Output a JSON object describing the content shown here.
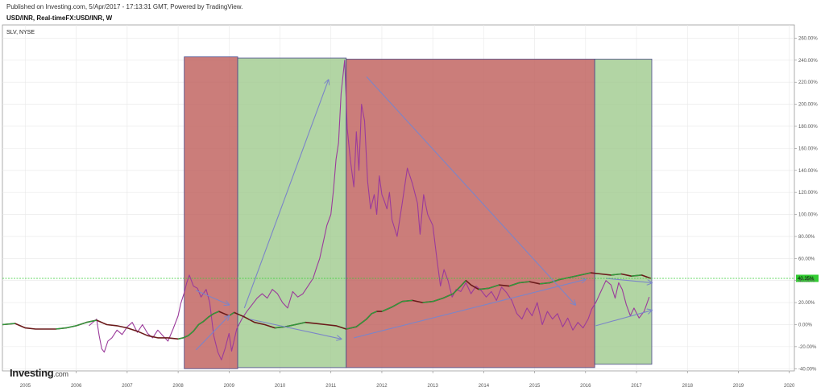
{
  "header": {
    "published": "Published on Investing.com, 5/Apr/2017 - 17:13:31 GMT, Powered by TradingView.",
    "symbol": "USD/INR, Real-timeFX:USD/INR, W"
  },
  "logo": {
    "text": "Investing",
    "suffix": ".com"
  },
  "colors": {
    "red_zone": "#c0605d",
    "green_zone": "#9cc98a",
    "purple": "#9b3b9b",
    "arrow": "#7b85c8",
    "up_candle": "#2e9e3e",
    "down_candle": "#6a1a1a",
    "ref_line": "#33cc33",
    "badge": "#33cc33"
  },
  "chart_data": {
    "type": "line",
    "title": "",
    "legend": [
      "SLV, NYSE"
    ],
    "xlabel": "",
    "ylabel": "",
    "x_ticks": [
      "2005",
      "2006",
      "2007",
      "2008",
      "2009",
      "2010",
      "2011",
      "2012",
      "2013",
      "2014",
      "2015",
      "2016",
      "2017",
      "2018",
      "2019",
      "2020"
    ],
    "y_ticks": [
      "260.00%",
      "240.00%",
      "220.00%",
      "200.00%",
      "180.00%",
      "160.00%",
      "140.00%",
      "120.00%",
      "100.00%",
      "80.00%",
      "60.00%",
      "40.00%",
      "20.00%",
      "0.00%",
      "-20.00%",
      "-40.00%"
    ],
    "xlim": [
      2004.55,
      2020.1
    ],
    "ylim": [
      -42,
      272
    ],
    "grid": true,
    "legend_position": "top-left",
    "reference_line": {
      "value": 42,
      "label": "40.35%"
    },
    "zones": [
      {
        "kind": "red",
        "x0": 2008.12,
        "x1": 2009.17,
        "y0": -40,
        "y1": 243
      },
      {
        "kind": "green",
        "x0": 2009.17,
        "x1": 2011.3,
        "y0": -39,
        "y1": 242
      },
      {
        "kind": "red",
        "x0": 2011.3,
        "x1": 2016.18,
        "y0": -39,
        "y1": 241
      },
      {
        "kind": "green",
        "x0": 2016.18,
        "x1": 2017.3,
        "y0": -36,
        "y1": 241
      }
    ],
    "arrows": [
      {
        "from": [
          2008.35,
          31
        ],
        "to": [
          2009.0,
          18
        ]
      },
      {
        "from": [
          2008.35,
          -23
        ],
        "to": [
          2009.0,
          8
        ]
      },
      {
        "from": [
          2009.3,
          15
        ],
        "to": [
          2010.95,
          222
        ]
      },
      {
        "from": [
          2009.4,
          5
        ],
        "to": [
          2011.2,
          -13
        ]
      },
      {
        "from": [
          2011.7,
          225
        ],
        "to": [
          2015.8,
          18
        ]
      },
      {
        "from": [
          2011.45,
          -12
        ],
        "to": [
          2016.0,
          41
        ]
      },
      {
        "from": [
          2016.4,
          42
        ],
        "to": [
          2017.3,
          38
        ]
      },
      {
        "from": [
          2016.2,
          -1
        ],
        "to": [
          2017.3,
          13
        ]
      }
    ],
    "series": [
      {
        "name": "SLV, NYSE",
        "x": [
          2006.25,
          2006.4,
          2006.45,
          2006.5,
          2006.55,
          2006.62,
          2006.7,
          2006.8,
          2006.9,
          2007.0,
          2007.1,
          2007.2,
          2007.3,
          2007.4,
          2007.5,
          2007.6,
          2007.7,
          2007.8,
          2007.9,
          2008.0,
          2008.05,
          2008.12,
          2008.17,
          2008.22,
          2008.3,
          2008.38,
          2008.45,
          2008.55,
          2008.62,
          2008.7,
          2008.78,
          2008.85,
          2008.92,
          2009.0,
          2009.05,
          2009.15,
          2009.25,
          2009.35,
          2009.45,
          2009.55,
          2009.65,
          2009.75,
          2009.85,
          2009.95,
          2010.05,
          2010.15,
          2010.25,
          2010.35,
          2010.45,
          2010.55,
          2010.65,
          2010.72,
          2010.78,
          2010.85,
          2010.92,
          2011.0,
          2011.05,
          2011.1,
          2011.15,
          2011.2,
          2011.27,
          2011.32,
          2011.38,
          2011.45,
          2011.5,
          2011.55,
          2011.6,
          2011.66,
          2011.72,
          2011.78,
          2011.85,
          2011.9,
          2011.95,
          2012.0,
          2012.05,
          2012.1,
          2012.15,
          2012.2,
          2012.3,
          2012.4,
          2012.5,
          2012.6,
          2012.7,
          2012.75,
          2012.82,
          2012.9,
          2013.0,
          2013.08,
          2013.15,
          2013.22,
          2013.3,
          2013.38,
          2013.46,
          2013.55,
          2013.65,
          2013.75,
          2013.85,
          2013.95,
          2014.05,
          2014.15,
          2014.25,
          2014.35,
          2014.45,
          2014.55,
          2014.65,
          2014.75,
          2014.85,
          2014.95,
          2015.05,
          2015.15,
          2015.25,
          2015.35,
          2015.45,
          2015.55,
          2015.65,
          2015.75,
          2015.85,
          2015.95,
          2016.05,
          2016.12,
          2016.2,
          2016.3,
          2016.4,
          2016.5,
          2016.58,
          2016.65,
          2016.72,
          2016.8,
          2016.88,
          2016.95,
          2017.05,
          2017.15,
          2017.25
        ],
        "y": [
          -1,
          5,
          -10,
          -22,
          -25,
          -15,
          -12,
          -5,
          -9,
          -2,
          2,
          -7,
          0,
          -8,
          -12,
          -5,
          -10,
          -15,
          -4,
          8,
          19,
          29,
          38,
          45,
          35,
          33,
          25,
          32,
          20,
          -10,
          -25,
          -32,
          -22,
          -8,
          -24,
          -4,
          5,
          12,
          18,
          24,
          28,
          24,
          32,
          28,
          20,
          15,
          30,
          25,
          28,
          35,
          42,
          52,
          60,
          75,
          90,
          100,
          122,
          150,
          165,
          210,
          240,
          178,
          150,
          125,
          175,
          140,
          200,
          185,
          130,
          105,
          118,
          100,
          135,
          118,
          112,
          105,
          120,
          95,
          80,
          110,
          142,
          128,
          110,
          82,
          118,
          100,
          90,
          60,
          35,
          50,
          40,
          25,
          32,
          30,
          38,
          28,
          35,
          31,
          25,
          30,
          22,
          34,
          29,
          22,
          10,
          5,
          15,
          8,
          20,
          0,
          12,
          5,
          10,
          -2,
          6,
          -5,
          2,
          -3,
          5,
          14,
          20,
          30,
          40,
          36,
          24,
          38,
          32,
          18,
          8,
          15,
          6,
          12,
          25
        ]
      },
      {
        "name": "USD/INR",
        "x": [
          2004.55,
          2004.8,
          2005.0,
          2005.2,
          2005.4,
          2005.6,
          2005.8,
          2006.0,
          2006.2,
          2006.4,
          2006.6,
          2006.8,
          2007.0,
          2007.2,
          2007.4,
          2007.6,
          2007.8,
          2008.0,
          2008.1,
          2008.2,
          2008.3,
          2008.4,
          2008.5,
          2008.6,
          2008.7,
          2008.8,
          2008.9,
          2009.0,
          2009.1,
          2009.2,
          2009.3,
          2009.5,
          2009.7,
          2009.9,
          2010.1,
          2010.3,
          2010.5,
          2010.7,
          2010.9,
          2011.1,
          2011.3,
          2011.5,
          2011.7,
          2011.8,
          2011.9,
          2012.0,
          2012.2,
          2012.4,
          2012.6,
          2012.8,
          2013.0,
          2013.2,
          2013.4,
          2013.55,
          2013.65,
          2013.75,
          2013.9,
          2014.1,
          2014.3,
          2014.5,
          2014.7,
          2014.9,
          2015.1,
          2015.3,
          2015.5,
          2015.7,
          2015.9,
          2016.1,
          2016.3,
          2016.5,
          2016.7,
          2016.9,
          2017.1,
          2017.28
        ],
        "y": [
          0,
          1,
          -3,
          -4,
          -4,
          -4,
          -3,
          -1,
          2,
          4,
          0,
          -1,
          -3,
          -6,
          -10,
          -12,
          -12,
          -13,
          -12,
          -10,
          -6,
          0,
          3,
          7,
          10,
          12,
          10,
          8,
          11,
          9,
          7,
          2,
          0,
          -3,
          -2,
          0,
          2,
          1,
          0,
          -1,
          -4,
          -2,
          5,
          10,
          12,
          12,
          16,
          21,
          22,
          20,
          21,
          24,
          28,
          35,
          40,
          36,
          32,
          33,
          36,
          35,
          38,
          39,
          37,
          38,
          41,
          43,
          45,
          47,
          46,
          45,
          46,
          44,
          45,
          42
        ]
      }
    ]
  }
}
